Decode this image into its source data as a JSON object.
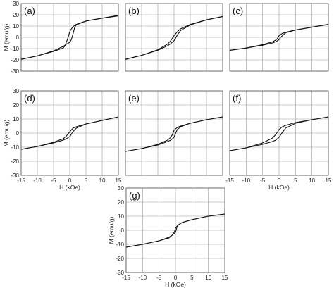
{
  "chart_data": [
    {
      "type": "line",
      "panel_label": "(a)",
      "xlim": [
        -15,
        15
      ],
      "ylim": [
        -30,
        30
      ],
      "xlabel": "",
      "ylabel": "M (emu/g)",
      "xticks": [],
      "yticks": [
        -30,
        -20,
        -10,
        0,
        10,
        20,
        30
      ],
      "grid": true,
      "series": [
        {
          "x": [
            -15,
            -10,
            -5,
            -2,
            -1,
            0,
            0.5,
            1,
            1.5,
            2,
            5,
            10,
            15
          ],
          "y": [
            -19.5,
            -16.5,
            -12,
            -8,
            -6,
            -4.5,
            -2,
            3,
            8.5,
            11,
            14.5,
            17,
            19
          ]
        },
        {
          "x": [
            15,
            10,
            5,
            2,
            1,
            0.5,
            0,
            -0.5,
            -1,
            -1.5,
            -2,
            -5,
            -10,
            -15
          ],
          "y": [
            19.5,
            17,
            14.5,
            11.5,
            9.5,
            7.5,
            5,
            0,
            -4,
            -7.5,
            -9.5,
            -12.5,
            -16.5,
            -19.5
          ]
        }
      ]
    },
    {
      "type": "line",
      "panel_label": "(b)",
      "xlim": [
        -15,
        15
      ],
      "ylim": [
        -30,
        30
      ],
      "xlabel": "",
      "ylabel": "",
      "xticks": [],
      "yticks": [],
      "grid": true,
      "series": [
        {
          "x": [
            -15,
            -10,
            -5,
            -2,
            -1,
            0,
            1,
            2,
            5,
            10,
            15
          ],
          "y": [
            -19.5,
            -16,
            -11.5,
            -7.5,
            -5.5,
            -3,
            2,
            6,
            11,
            15.5,
            18.5
          ]
        },
        {
          "x": [
            15,
            10,
            5,
            2,
            1,
            0,
            -1,
            -2,
            -5,
            -10,
            -15
          ],
          "y": [
            18.5,
            15.5,
            11.5,
            7.5,
            5,
            1.5,
            -3,
            -6,
            -11,
            -16,
            -19.5
          ]
        }
      ]
    },
    {
      "type": "line",
      "panel_label": "(c)",
      "xlim": [
        -15,
        15
      ],
      "ylim": [
        -30,
        30
      ],
      "xlabel": "",
      "ylabel": "",
      "xticks": [],
      "yticks": [],
      "grid": true,
      "series": [
        {
          "x": [
            -15,
            -10,
            -5,
            -2,
            -1,
            0,
            0.5,
            1,
            2,
            5,
            10,
            15
          ],
          "y": [
            -11.5,
            -9.5,
            -7,
            -5,
            -4,
            -2,
            0,
            1.5,
            4,
            6.5,
            9,
            11.5
          ]
        },
        {
          "x": [
            15,
            10,
            5,
            2,
            1,
            0,
            -0.5,
            -1,
            -2,
            -5,
            -10,
            -15
          ],
          "y": [
            11.5,
            9,
            6.5,
            4.5,
            3.5,
            1.5,
            -1,
            -2.5,
            -4,
            -6.5,
            -9.5,
            -11.5
          ]
        }
      ]
    },
    {
      "type": "line",
      "panel_label": "(d)",
      "xlim": [
        -15,
        15
      ],
      "ylim": [
        -30,
        30
      ],
      "xlabel": "",
      "ylabel": "M (emu/g)",
      "xticks": [],
      "yticks": [
        -30,
        -20,
        -10,
        0,
        10,
        20,
        30
      ],
      "grid": true,
      "series": [
        {
          "x": [
            -15,
            -10,
            -5,
            -2,
            -1,
            0,
            1,
            2,
            5,
            10,
            15
          ],
          "y": [
            -11.5,
            -9.5,
            -7,
            -5,
            -4,
            -2.5,
            1,
            3.5,
            6.5,
            9,
            11.5
          ]
        },
        {
          "x": [
            15,
            10,
            5,
            2,
            1,
            0,
            -1,
            -2,
            -5,
            -10,
            -15
          ],
          "y": [
            11.5,
            9,
            6.5,
            4.5,
            3.5,
            1,
            -2,
            -4,
            -6.5,
            -9.5,
            -11.5
          ]
        }
      ]
    },
    {
      "type": "line",
      "panel_label": "(e)",
      "xlim": [
        -15,
        15
      ],
      "ylim": [
        -30,
        30
      ],
      "xlabel": "",
      "ylabel": "",
      "xticks": [],
      "yticks": [],
      "grid": true,
      "series": [
        {
          "x": [
            -15,
            -10,
            -5,
            -2,
            -1,
            0,
            0.5,
            1,
            2,
            5,
            10,
            15
          ],
          "y": [
            -13,
            -11,
            -8.5,
            -6,
            -5,
            -3,
            0,
            2.5,
            4.5,
            7,
            9.5,
            11.5
          ]
        },
        {
          "x": [
            15,
            10,
            5,
            2,
            1,
            0,
            -0.5,
            -1,
            -2,
            -5,
            -10,
            -15
          ],
          "y": [
            11.5,
            9.5,
            7,
            5,
            4,
            2,
            -1,
            -3,
            -5,
            -8,
            -11,
            -13
          ]
        }
      ]
    },
    {
      "type": "line",
      "panel_label": "(f)",
      "xlim": [
        -15,
        15
      ],
      "ylim": [
        -30,
        30
      ],
      "xlabel": "",
      "ylabel": "",
      "xticks": [],
      "yticks": [],
      "grid": true,
      "series": [
        {
          "x": [
            -15,
            -10,
            -5,
            -2,
            -1,
            0,
            1,
            2,
            5,
            10,
            15
          ],
          "y": [
            -12.5,
            -10.5,
            -8,
            -6,
            -5,
            -3,
            0.5,
            3.5,
            7,
            9.5,
            11.5
          ]
        },
        {
          "x": [
            15,
            10,
            5,
            2,
            1,
            0,
            -1,
            -2,
            -5,
            -10,
            -15
          ],
          "y": [
            11.5,
            9.5,
            7.5,
            5.5,
            4.5,
            2.5,
            -1,
            -3.5,
            -7,
            -10.5,
            -12.5
          ]
        }
      ]
    },
    {
      "type": "line",
      "panel_label": "(g)",
      "xlim": [
        -15,
        15
      ],
      "ylim": [
        -30,
        30
      ],
      "xlabel": "H (kOe)",
      "ylabel": "M (emu/g)",
      "xticks": [
        -15,
        -10,
        -5,
        0,
        5,
        10,
        15
      ],
      "yticks": [
        -30,
        -20,
        -10,
        0,
        10,
        20,
        30
      ],
      "grid": true,
      "series": [
        {
          "x": [
            -15,
            -10,
            -5,
            -2,
            -1,
            0,
            0.3,
            0.6,
            1,
            2,
            5,
            10,
            15
          ],
          "y": [
            -12,
            -10,
            -7.5,
            -5,
            -3.5,
            -1.5,
            1,
            3,
            4,
            5.5,
            7.5,
            10,
            11.5
          ]
        },
        {
          "x": [
            15,
            10,
            5,
            2,
            1,
            0.5,
            0,
            -0.3,
            -1,
            -2,
            -5,
            -10,
            -15
          ],
          "y": [
            11.5,
            10,
            7.5,
            5.5,
            4,
            3,
            1.5,
            -1,
            -3.5,
            -5.5,
            -7.5,
            -10,
            -12
          ]
        }
      ]
    },
    {
      "type": "axis-only",
      "xlabel": "H (kOe)",
      "xticks": [
        -15,
        -10,
        -5,
        0,
        5,
        10,
        15
      ]
    },
    {
      "type": "axis-only",
      "xlabel": "H (kOe)",
      "xticks": [
        -15,
        -10,
        -5,
        0,
        5,
        10,
        15
      ]
    }
  ]
}
